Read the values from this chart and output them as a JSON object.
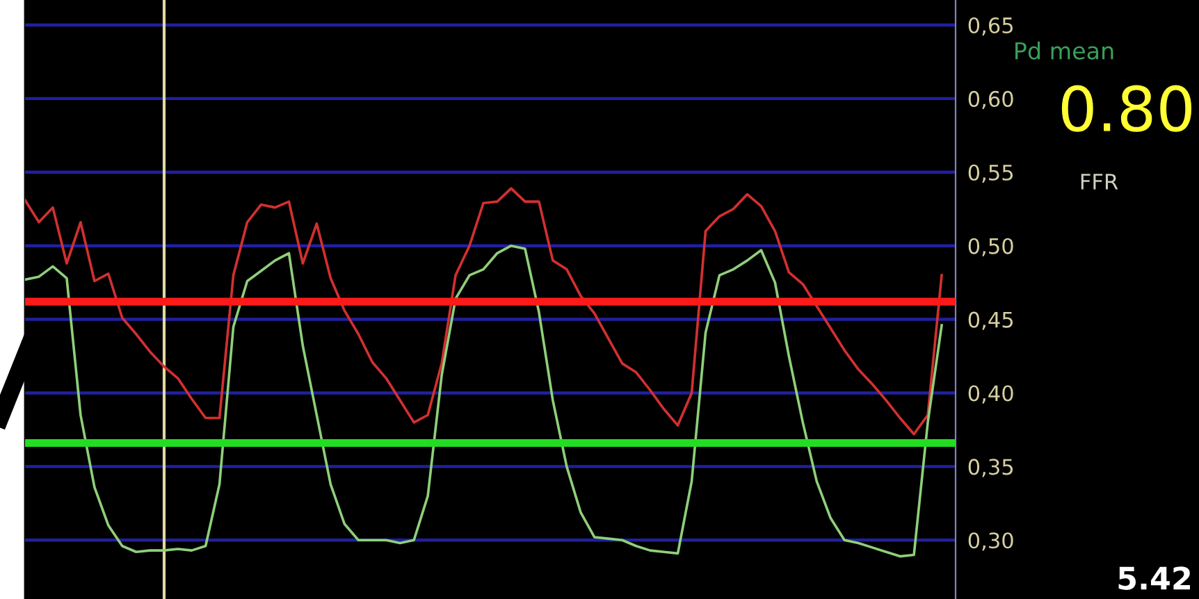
{
  "chart_data": {
    "type": "line",
    "categories": [
      null,
      null,
      null,
      null,
      null,
      null,
      null,
      null,
      null,
      null,
      null,
      null,
      null,
      null,
      null,
      null,
      null,
      null,
      null,
      null,
      null,
      null,
      null,
      null,
      null,
      null,
      null,
      null,
      null,
      null,
      null,
      null,
      null,
      null,
      null,
      null,
      null,
      null,
      null,
      null,
      null,
      null,
      null,
      null,
      null,
      null,
      null,
      null,
      null,
      null,
      null,
      null,
      null,
      null,
      null,
      null,
      null,
      null,
      null,
      null,
      null,
      null,
      null,
      null,
      null,
      null,
      null
    ],
    "ylim": [
      0.26,
      0.667
    ],
    "yticks": [
      {
        "value": 0.3,
        "label": "0,30"
      },
      {
        "value": 0.35,
        "label": "0,35"
      },
      {
        "value": 0.4,
        "label": "0,40"
      },
      {
        "value": 0.45,
        "label": "0,45"
      },
      {
        "value": 0.5,
        "label": "0,50"
      },
      {
        "value": 0.55,
        "label": "0,55"
      },
      {
        "value": 0.6,
        "label": "0,60"
      },
      {
        "value": 0.65,
        "label": "0,65"
      }
    ],
    "tick_labels": "y",
    "grid": "y",
    "series": [
      {
        "color": "#d23030",
        "values": [
          0.531,
          0.516,
          0.526,
          0.488,
          0.516,
          0.476,
          0.481,
          0.451,
          0.44,
          0.428,
          0.418,
          0.41,
          0.396,
          0.383,
          0.383,
          0.48,
          0.516,
          0.528,
          0.526,
          0.53,
          0.488,
          0.515,
          0.478,
          0.456,
          0.44,
          0.421,
          0.41,
          0.395,
          0.38,
          0.385,
          0.42,
          0.48,
          0.5,
          0.529,
          0.53,
          0.539,
          0.53,
          0.53,
          0.49,
          0.484,
          0.466,
          0.454,
          0.437,
          0.42,
          0.414,
          0.402,
          0.389,
          0.378,
          0.4,
          0.51,
          0.52,
          0.525,
          0.535,
          0.527,
          0.51,
          0.482,
          0.474,
          0.459,
          0.444,
          0.429,
          0.416,
          0.406,
          0.395,
          0.383,
          0.372,
          0.385,
          0.48
        ]
      },
      {
        "color": "#8fcf7a",
        "values": [
          0.477,
          0.479,
          0.486,
          0.478,
          0.385,
          0.336,
          0.31,
          0.296,
          0.292,
          0.293,
          0.293,
          0.294,
          0.293,
          0.296,
          0.338,
          0.445,
          0.476,
          0.483,
          0.49,
          0.495,
          0.432,
          0.385,
          0.338,
          0.311,
          0.3,
          0.3,
          0.3,
          0.298,
          0.3,
          0.33,
          0.412,
          0.464,
          0.48,
          0.484,
          0.495,
          0.5,
          0.498,
          0.455,
          0.395,
          0.35,
          0.319,
          0.302,
          0.301,
          0.3,
          0.296,
          0.293,
          0.292,
          0.291,
          0.34,
          0.441,
          0.48,
          0.484,
          0.49,
          0.497,
          0.475,
          0.425,
          0.38,
          0.34,
          0.315,
          0.3,
          0.298,
          0.295,
          0.292,
          0.289,
          0.29,
          0.38,
          0.446
        ]
      }
    ],
    "ref_lines": [
      {
        "axis": "y",
        "value": 0.462,
        "color": "#ff1a1a"
      },
      {
        "axis": "y",
        "value": 0.366,
        "color": "#22dd22"
      }
    ],
    "annotations": [
      "Pd mean",
      "0.80",
      "FFR",
      "5.42"
    ]
  }
}
